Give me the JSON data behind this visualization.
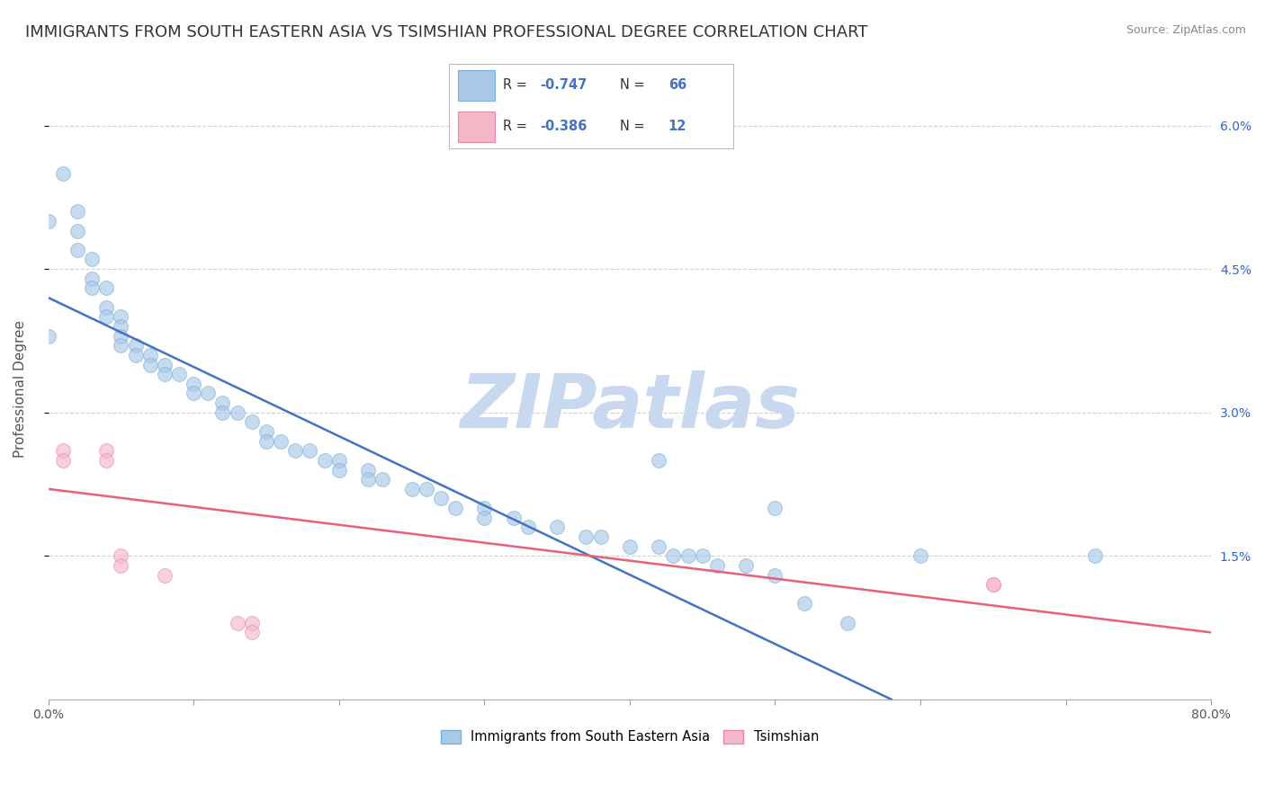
{
  "title": "IMMIGRANTS FROM SOUTH EASTERN ASIA VS TSIMSHIAN PROFESSIONAL DEGREE CORRELATION CHART",
  "source": "Source: ZipAtlas.com",
  "ylabel": "Professional Degree",
  "right_yticks": [
    "6.0%",
    "4.5%",
    "3.0%",
    "1.5%"
  ],
  "right_ytick_vals": [
    0.06,
    0.045,
    0.03,
    0.015
  ],
  "legend_labels": [
    "Immigrants from South Eastern Asia",
    "Tsimshian"
  ],
  "watermark": "ZIPatlas",
  "blue_scatter": [
    [
      0.01,
      0.055
    ],
    [
      0.02,
      0.051
    ],
    [
      0.02,
      0.049
    ],
    [
      0.02,
      0.047
    ],
    [
      0.03,
      0.046
    ],
    [
      0.03,
      0.044
    ],
    [
      0.03,
      0.043
    ],
    [
      0.04,
      0.043
    ],
    [
      0.04,
      0.041
    ],
    [
      0.04,
      0.04
    ],
    [
      0.05,
      0.04
    ],
    [
      0.05,
      0.039
    ],
    [
      0.05,
      0.038
    ],
    [
      0.05,
      0.037
    ],
    [
      0.06,
      0.037
    ],
    [
      0.06,
      0.036
    ],
    [
      0.07,
      0.036
    ],
    [
      0.07,
      0.035
    ],
    [
      0.08,
      0.035
    ],
    [
      0.08,
      0.034
    ],
    [
      0.09,
      0.034
    ],
    [
      0.1,
      0.033
    ],
    [
      0.1,
      0.032
    ],
    [
      0.11,
      0.032
    ],
    [
      0.12,
      0.031
    ],
    [
      0.12,
      0.03
    ],
    [
      0.13,
      0.03
    ],
    [
      0.14,
      0.029
    ],
    [
      0.15,
      0.028
    ],
    [
      0.15,
      0.027
    ],
    [
      0.16,
      0.027
    ],
    [
      0.17,
      0.026
    ],
    [
      0.18,
      0.026
    ],
    [
      0.19,
      0.025
    ],
    [
      0.2,
      0.025
    ],
    [
      0.2,
      0.024
    ],
    [
      0.22,
      0.024
    ],
    [
      0.22,
      0.023
    ],
    [
      0.23,
      0.023
    ],
    [
      0.25,
      0.022
    ],
    [
      0.26,
      0.022
    ],
    [
      0.27,
      0.021
    ],
    [
      0.28,
      0.02
    ],
    [
      0.3,
      0.02
    ],
    [
      0.3,
      0.019
    ],
    [
      0.32,
      0.019
    ],
    [
      0.33,
      0.018
    ],
    [
      0.35,
      0.018
    ],
    [
      0.37,
      0.017
    ],
    [
      0.38,
      0.017
    ],
    [
      0.4,
      0.016
    ],
    [
      0.42,
      0.016
    ],
    [
      0.43,
      0.015
    ],
    [
      0.44,
      0.015
    ],
    [
      0.45,
      0.015
    ],
    [
      0.46,
      0.014
    ],
    [
      0.48,
      0.014
    ],
    [
      0.5,
      0.013
    ],
    [
      0.52,
      0.01
    ],
    [
      0.55,
      0.008
    ],
    [
      0.42,
      0.025
    ],
    [
      0.5,
      0.02
    ],
    [
      0.0,
      0.05
    ],
    [
      0.0,
      0.038
    ],
    [
      0.6,
      0.015
    ],
    [
      0.72,
      0.015
    ]
  ],
  "pink_scatter": [
    [
      0.01,
      0.026
    ],
    [
      0.01,
      0.025
    ],
    [
      0.04,
      0.026
    ],
    [
      0.04,
      0.025
    ],
    [
      0.05,
      0.015
    ],
    [
      0.05,
      0.014
    ],
    [
      0.08,
      0.013
    ],
    [
      0.13,
      0.008
    ],
    [
      0.14,
      0.008
    ],
    [
      0.14,
      0.007
    ],
    [
      0.65,
      0.012
    ],
    [
      0.65,
      0.012
    ]
  ],
  "blue_line": {
    "x0": 0.0,
    "y0": 0.042,
    "x1": 0.58,
    "y1": 0.0
  },
  "pink_line": {
    "x0": 0.0,
    "y0": 0.022,
    "x1": 0.8,
    "y1": 0.007
  },
  "xlim": [
    0.0,
    0.8
  ],
  "ylim": [
    0.0,
    0.065
  ],
  "scatter_size": 130,
  "scatter_alpha": 0.65,
  "blue_color": "#a8c8e8",
  "blue_edge": "#7aafd4",
  "pink_color": "#f5b8c8",
  "pink_edge": "#e888a8",
  "blue_line_color": "#4472c4",
  "pink_line_color": "#e8607a",
  "grid_color": "#cccccc",
  "background_color": "#ffffff",
  "title_fontsize": 13,
  "axis_label_fontsize": 11,
  "tick_fontsize": 10,
  "watermark_color": "#c8d8ee",
  "watermark_fontsize": 60
}
